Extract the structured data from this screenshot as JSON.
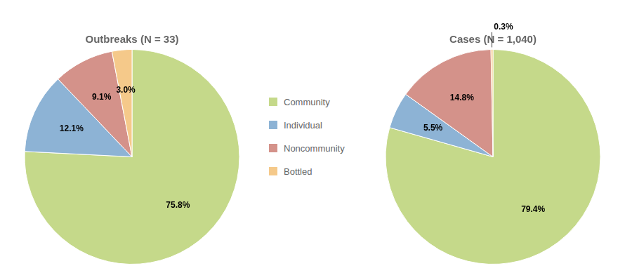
{
  "chart_data": [
    {
      "type": "pie",
      "title": "Outbreaks (N = 33)",
      "categories": [
        "Community",
        "Individual",
        "Noncommunity",
        "Bottled"
      ],
      "values": [
        75.8,
        12.1,
        9.1,
        3.0
      ],
      "value_labels": [
        "75.8%",
        "12.1%",
        "9.1%",
        "3.0%"
      ],
      "colors": [
        "#c5d98a",
        "#8db3d5",
        "#d4928a",
        "#f5c98a"
      ],
      "data_labels": true,
      "legend": "right"
    },
    {
      "type": "pie",
      "title": "Cases (N = 1,040)",
      "categories": [
        "Community",
        "Individual",
        "Noncommunity",
        "Bottled"
      ],
      "values": [
        79.4,
        5.5,
        14.8,
        0.3
      ],
      "value_labels": [
        "79.4%",
        "5.5%",
        "14.8%",
        "0.3%"
      ],
      "colors": [
        "#c5d98a",
        "#8db3d5",
        "#d4928a",
        "#f5c98a"
      ],
      "data_labels": true
    }
  ]
}
